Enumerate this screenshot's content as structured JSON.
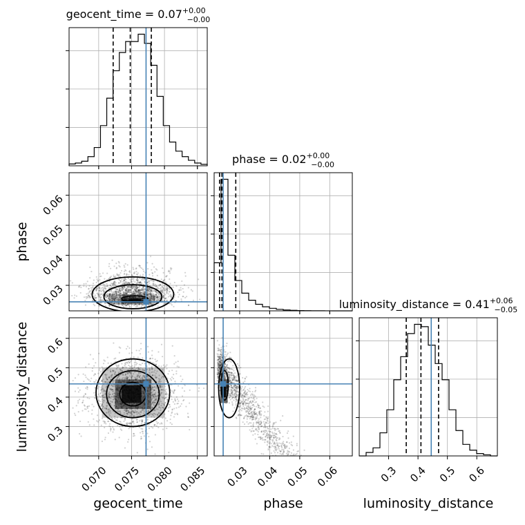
{
  "chart_data": {
    "type": "corner",
    "parameters": [
      "geocent_time",
      "phase",
      "luminosity_distance"
    ],
    "axis_labels": {
      "geocent_time": "geocent_time",
      "phase": "phase",
      "luminosity_distance": "luminosity_distance"
    },
    "titles": [
      {
        "param": "geocent_time",
        "name": "geocent_time",
        "median": "0.07",
        "plus": "+0.00",
        "minus": "−0.00"
      },
      {
        "param": "phase",
        "name": "phase",
        "median": "0.02",
        "plus": "+0.00",
        "minus": "−0.00"
      },
      {
        "param": "luminosity_distance",
        "name": "luminosity_distance",
        "median": "0.41",
        "plus": "+0.06",
        "minus": "−0.05"
      }
    ],
    "ranges": {
      "geocent_time": [
        0.0655,
        0.0865
      ],
      "phase": [
        0.0215,
        0.0675
      ],
      "luminosity_distance": [
        0.2,
        0.67
      ]
    },
    "ticks": {
      "geocent_time": [
        {
          "v": 0.07,
          "label": "0.070"
        },
        {
          "v": 0.075,
          "label": "0.075"
        },
        {
          "v": 0.08,
          "label": "0.080"
        },
        {
          "v": 0.085,
          "label": "0.085"
        }
      ],
      "phase": [
        {
          "v": 0.03,
          "label": "0.03"
        },
        {
          "v": 0.04,
          "label": "0.04"
        },
        {
          "v": 0.05,
          "label": "0.05"
        },
        {
          "v": 0.06,
          "label": "0.06"
        }
      ],
      "luminosity_distance": [
        {
          "v": 0.3,
          "label": "0.3"
        },
        {
          "v": 0.4,
          "label": "0.4"
        },
        {
          "v": 0.5,
          "label": "0.5"
        },
        {
          "v": 0.6,
          "label": "0.6"
        }
      ]
    },
    "truths": {
      "geocent_time": 0.0772,
      "phase": 0.0245,
      "luminosity_distance": 0.445
    },
    "quantiles": {
      "geocent_time": [
        0.0722,
        0.0748,
        0.078
      ],
      "phase": [
        0.0233,
        0.0241,
        0.0287
      ],
      "luminosity_distance": [
        0.36,
        0.41,
        0.47
      ]
    },
    "histograms": {
      "geocent_time": [
        1,
        1.5,
        2.5,
        5,
        10,
        22,
        37,
        52,
        62,
        68,
        68,
        72,
        67,
        55,
        38,
        22,
        13,
        8,
        5,
        3,
        1.5,
        0.8
      ],
      "phase": [
        1900,
        5200,
        2200,
        1200,
        700,
        420,
        260,
        160,
        100,
        60,
        35,
        20,
        12,
        8,
        5,
        3,
        2,
        1,
        1,
        0
      ],
      "luminosity_distance": [
        0,
        1.5,
        3.5,
        10,
        20,
        33,
        43,
        53,
        57,
        56,
        48,
        40,
        33,
        20,
        11,
        5,
        2.5,
        1,
        0.5,
        0
      ]
    },
    "color_truth": "#4682b4",
    "grid": true
  }
}
